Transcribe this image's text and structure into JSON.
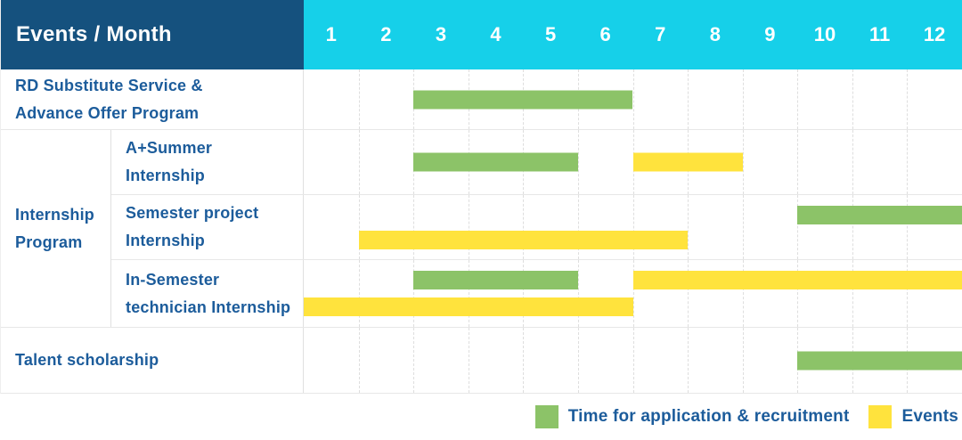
{
  "header": {
    "events_month_label": "Events / Month",
    "months": [
      "1",
      "2",
      "3",
      "4",
      "5",
      "6",
      "7",
      "8",
      "9",
      "10",
      "11",
      "12"
    ]
  },
  "colors": {
    "header_navy": "#15517E",
    "month_cyan": "#16D0E9",
    "label_blue": "#1C5C9B",
    "bar_green": "#8CC368",
    "bar_yellow": "#FFE33D",
    "grid_line": "#E7E7E7",
    "grid_edge": "#E0E0E0",
    "grid_dash": "#DEDEDE"
  },
  "chart_data": {
    "type": "gantt",
    "title": "Events / Month",
    "x_axis": {
      "unit": "month",
      "min": 1,
      "max": 12,
      "ticks": [
        "1",
        "2",
        "3",
        "4",
        "5",
        "6",
        "7",
        "8",
        "9",
        "10",
        "11",
        "12"
      ]
    },
    "group_label": "Internship Program",
    "rows": [
      {
        "label": "RD Substitute Service &\nAdvance Offer Program",
        "group": null,
        "lines": 1,
        "bars": [
          {
            "series": "Time for application & recruitment",
            "color": "green",
            "start_month": 3,
            "end_month": 6,
            "line": 0
          }
        ]
      },
      {
        "label": "A+Summer\nInternship",
        "group": "Internship Program",
        "lines": 1,
        "bars": [
          {
            "series": "Time for application & recruitment",
            "color": "green",
            "start_month": 3,
            "end_month": 5,
            "line": 0
          },
          {
            "series": "Events",
            "color": "yellow",
            "start_month": 7,
            "end_month": 8,
            "line": 0
          }
        ]
      },
      {
        "label": "Semester project\nInternship",
        "group": "Internship Program",
        "lines": 2,
        "bars": [
          {
            "series": "Time for application & recruitment",
            "color": "green",
            "start_month": 10,
            "end_month": 12,
            "line": 0
          },
          {
            "series": "Events",
            "color": "yellow",
            "start_month": 2,
            "end_month": 7,
            "line": 1
          }
        ]
      },
      {
        "label": "In-Semester\ntechnician Internship",
        "group": "Internship Program",
        "lines": 2,
        "bars": [
          {
            "series": "Time for application & recruitment",
            "color": "green",
            "start_month": 3,
            "end_month": 5,
            "line": 0
          },
          {
            "series": "Events",
            "color": "yellow",
            "start_month": 7,
            "end_month": 12,
            "line": 0
          },
          {
            "series": "Events",
            "color": "yellow",
            "start_month": 1,
            "end_month": 6,
            "line": 1
          }
        ]
      },
      {
        "label": "Talent scholarship",
        "group": null,
        "lines": 1,
        "bars": [
          {
            "series": "Time for application & recruitment",
            "color": "green",
            "start_month": 10,
            "end_month": 12,
            "line": 0
          }
        ]
      }
    ],
    "legend": [
      {
        "label": "Time for application & recruitment",
        "color": "green"
      },
      {
        "label": "Events",
        "color": "yellow"
      }
    ]
  }
}
